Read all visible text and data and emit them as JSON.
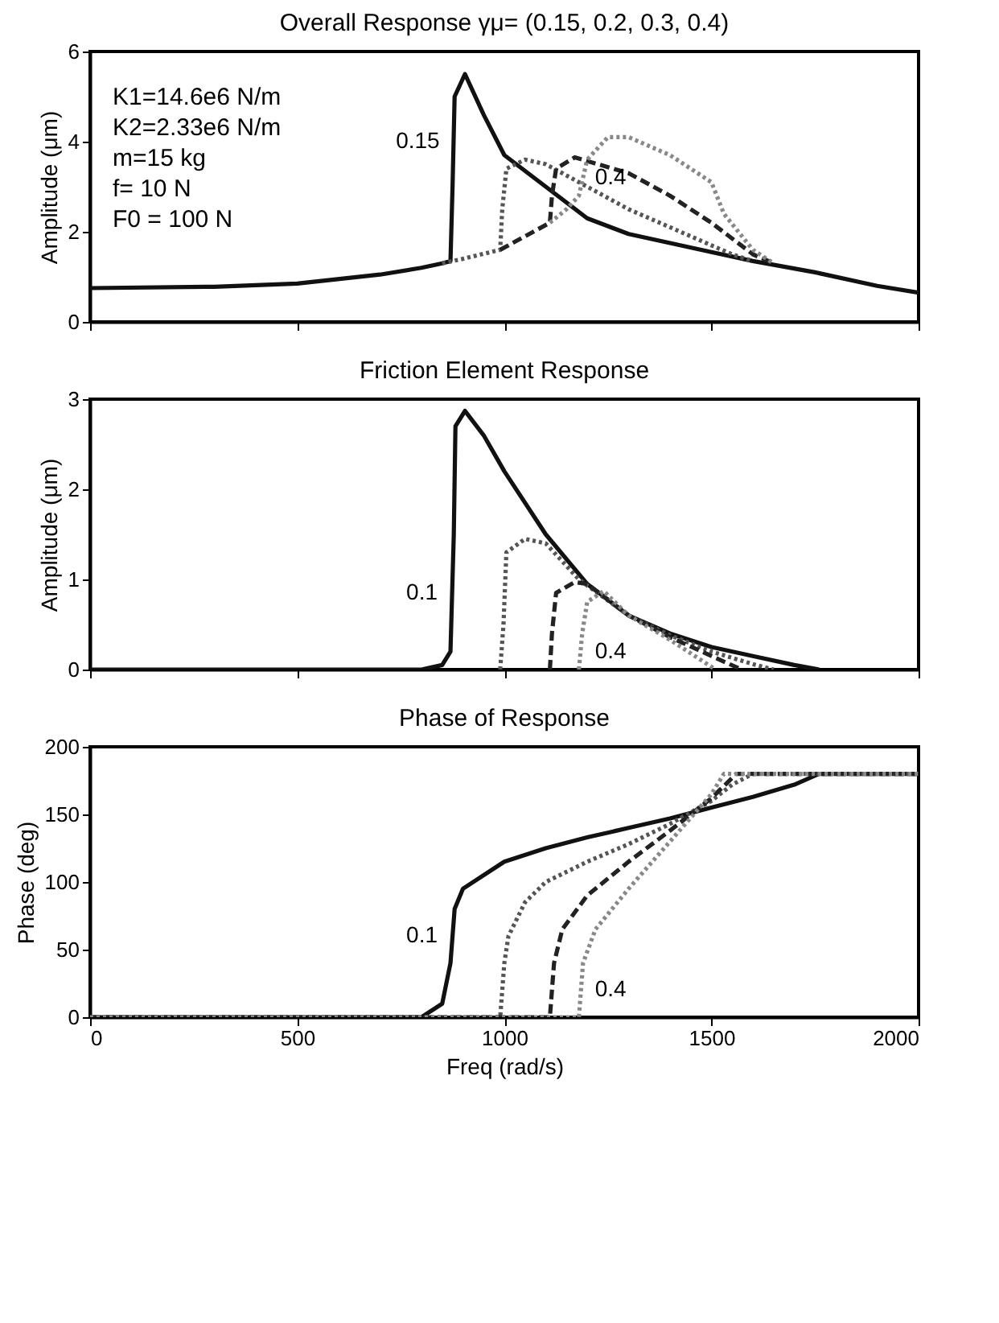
{
  "chart_data": [
    {
      "type": "line",
      "title": "Overall Response γμ= (0.15, 0.2, 0.3, 0.4)",
      "ylabel": "Amplitude (μm)",
      "xlim": [
        0,
        2000
      ],
      "xticks": [
        {
          "value": 0,
          "label": null
        },
        {
          "value": 500,
          "label": null
        },
        {
          "value": 1000,
          "label": null
        },
        {
          "value": 1500,
          "label": null
        },
        {
          "value": 2000,
          "label": null
        }
      ],
      "ylim": [
        0,
        6
      ],
      "yticks": [
        0,
        2,
        4,
        6
      ],
      "tick_labels": "y",
      "grid": false,
      "annotations": [
        "K1=14.6e6 N/m",
        "K2=2.33e6 N/m",
        "m=15 kg",
        "f= 10 N",
        "F0 = 100 N"
      ],
      "series": [
        {
          "name": "0.15",
          "color": "#111111",
          "line_style": "solid",
          "x": [
            0,
            300,
            500,
            700,
            800,
            850,
            870,
            875,
            880,
            905,
            950,
            1000,
            1100,
            1200,
            1300,
            1400,
            1500,
            1600,
            1750,
            1900,
            2000
          ],
          "values": [
            0.75,
            0.78,
            0.85,
            1.05,
            1.2,
            1.3,
            1.35,
            3.0,
            5.0,
            5.5,
            4.6,
            3.7,
            3.0,
            2.3,
            1.95,
            1.75,
            1.55,
            1.35,
            1.1,
            0.8,
            0.65
          ]
        },
        {
          "color": "#555555",
          "line_style": "dotted",
          "x": [
            850,
            900,
            990,
            995,
            1005,
            1050,
            1100,
            1200,
            1300,
            1400,
            1500,
            1550,
            1600
          ],
          "values": [
            1.3,
            1.4,
            1.6,
            2.5,
            3.4,
            3.6,
            3.5,
            3.0,
            2.5,
            2.1,
            1.7,
            1.5,
            1.35
          ]
        },
        {
          "color": "#222222",
          "line_style": "dashed",
          "x": [
            990,
            1050,
            1110,
            1115,
            1125,
            1170,
            1300,
            1400,
            1500,
            1600,
            1650
          ],
          "values": [
            1.6,
            1.9,
            2.2,
            2.8,
            3.4,
            3.65,
            3.3,
            2.8,
            2.2,
            1.5,
            1.3
          ]
        },
        {
          "name": "0.4",
          "color": "#888888",
          "line_style": "dotted",
          "x": [
            1110,
            1150,
            1180,
            1200,
            1250,
            1300,
            1400,
            1500,
            1530,
            1600,
            1650
          ],
          "values": [
            2.2,
            2.5,
            2.8,
            3.6,
            4.1,
            4.1,
            3.7,
            3.1,
            2.4,
            1.6,
            1.3
          ]
        }
      ]
    },
    {
      "type": "line",
      "title": "Friction Element Response",
      "ylabel": "Amplitude (μm)",
      "xlim": [
        0,
        2000
      ],
      "xticks": [
        {
          "value": 0,
          "label": null
        },
        {
          "value": 500,
          "label": null
        },
        {
          "value": 1000,
          "label": null
        },
        {
          "value": 1500,
          "label": null
        },
        {
          "value": 2000,
          "label": null
        }
      ],
      "ylim": [
        0,
        3
      ],
      "yticks": [
        0,
        1,
        2,
        3
      ],
      "tick_labels": "y",
      "grid": false,
      "series": [
        {
          "name": "0.1",
          "color": "#111111",
          "line_style": "solid",
          "x": [
            0,
            800,
            850,
            870,
            878,
            882,
            905,
            950,
            1000,
            1100,
            1200,
            1300,
            1400,
            1500,
            1600,
            1700,
            1760
          ],
          "values": [
            0,
            0,
            0.05,
            0.2,
            1.5,
            2.7,
            2.87,
            2.6,
            2.2,
            1.5,
            0.95,
            0.6,
            0.4,
            0.25,
            0.15,
            0.05,
            0
          ]
        },
        {
          "color": "#555555",
          "line_style": "dotted",
          "x": [
            990,
            998,
            1005,
            1050,
            1100,
            1180,
            1300,
            1400,
            1500,
            1600,
            1650
          ],
          "values": [
            0,
            0.5,
            1.3,
            1.45,
            1.4,
            1.0,
            0.6,
            0.38,
            0.2,
            0.06,
            0
          ]
        },
        {
          "color": "#222222",
          "line_style": "dashed",
          "x": [
            1110,
            1115,
            1125,
            1170,
            1200,
            1300,
            1400,
            1500,
            1573
          ],
          "values": [
            0,
            0.4,
            0.85,
            0.97,
            0.95,
            0.6,
            0.36,
            0.15,
            0
          ]
        },
        {
          "name": "0.4",
          "color": "#888888",
          "line_style": "dotted",
          "x": [
            1180,
            1188,
            1200,
            1240,
            1300,
            1400,
            1470,
            1510
          ],
          "values": [
            0,
            0.4,
            0.75,
            0.87,
            0.6,
            0.33,
            0.12,
            0
          ]
        }
      ]
    },
    {
      "type": "line",
      "title": "Phase of Response",
      "xlabel": "Freq (rad/s)",
      "ylabel": "Phase (deg)",
      "xlim": [
        0,
        2000
      ],
      "xticks": [
        0,
        500,
        1000,
        1500,
        2000
      ],
      "ylim": [
        0,
        200
      ],
      "yticks": [
        0,
        50,
        100,
        150,
        200
      ],
      "grid": false,
      "series": [
        {
          "name": "0.1",
          "color": "#111111",
          "line_style": "solid",
          "x": [
            0,
            800,
            850,
            870,
            880,
            900,
            1000,
            1100,
            1200,
            1300,
            1400,
            1500,
            1600,
            1700,
            1760,
            2000
          ],
          "values": [
            0,
            0,
            10,
            40,
            80,
            95,
            115,
            125,
            133,
            140,
            147,
            155,
            163,
            172,
            180,
            180
          ]
        },
        {
          "color": "#555555",
          "line_style": "dotted",
          "x": [
            0,
            990,
            1000,
            1010,
            1050,
            1100,
            1200,
            1300,
            1400,
            1500,
            1550,
            1600,
            2000
          ],
          "values": [
            0,
            0,
            40,
            60,
            85,
            100,
            115,
            128,
            143,
            160,
            172,
            180,
            180
          ]
        },
        {
          "color": "#222222",
          "line_style": "dashed",
          "x": [
            0,
            1110,
            1120,
            1140,
            1200,
            1300,
            1400,
            1500,
            1560,
            2000
          ],
          "values": [
            0,
            0,
            40,
            65,
            90,
            115,
            138,
            162,
            180,
            180
          ]
        },
        {
          "name": "0.4",
          "color": "#888888",
          "line_style": "dotted",
          "x": [
            0,
            1180,
            1190,
            1220,
            1300,
            1400,
            1500,
            1530,
            2000
          ],
          "values": [
            0,
            0,
            40,
            65,
            95,
            130,
            165,
            180,
            180
          ]
        }
      ]
    }
  ]
}
